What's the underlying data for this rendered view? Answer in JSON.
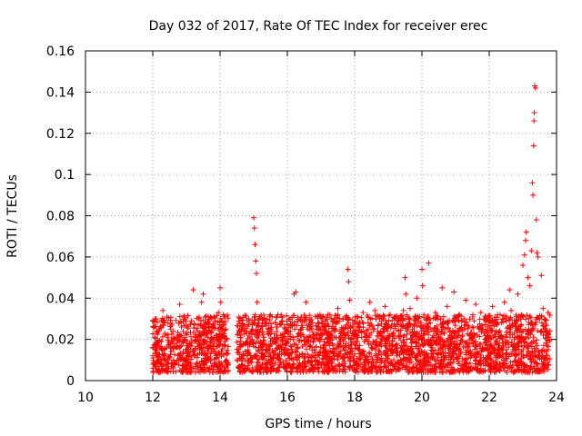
{
  "chart_data": {
    "type": "scatter",
    "title": "Day 032 of 2017, Rate Of TEC Index for receiver erec",
    "xlabel": "GPS time / hours",
    "ylabel": "ROTI / TECUs",
    "xlim": [
      10,
      24
    ],
    "ylim": [
      0,
      0.16
    ],
    "grid": true,
    "marker": "+",
    "color": "#ff0000",
    "x_ticks": [
      {
        "value": 10,
        "label": "10"
      },
      {
        "value": 12,
        "label": "12"
      },
      {
        "value": 14,
        "label": "14"
      },
      {
        "value": 16,
        "label": "16"
      },
      {
        "value": 18,
        "label": "18"
      },
      {
        "value": 20,
        "label": "20"
      },
      {
        "value": 22,
        "label": "22"
      },
      {
        "value": 24,
        "label": "24"
      }
    ],
    "y_ticks": [
      {
        "value": 0,
        "label": "0"
      },
      {
        "value": 0.02,
        "label": "0.02"
      },
      {
        "value": 0.04,
        "label": "0.04"
      },
      {
        "value": 0.06,
        "label": "0.06"
      },
      {
        "value": 0.08,
        "label": "0.08"
      },
      {
        "value": 0.1,
        "label": "0.1"
      },
      {
        "value": 0.12,
        "label": "0.12"
      },
      {
        "value": 0.14,
        "label": "0.14"
      },
      {
        "value": 0.16,
        "label": "0.16"
      }
    ],
    "series": [
      {
        "name": "ROTI",
        "points": [
          [
            12.0,
            0.012
          ],
          [
            12.05,
            0.021
          ],
          [
            12.1,
            0.03
          ],
          [
            12.12,
            0.018
          ],
          [
            12.2,
            0.025
          ],
          [
            12.25,
            0.01
          ],
          [
            12.3,
            0.034
          ],
          [
            12.35,
            0.015
          ],
          [
            12.4,
            0.022
          ],
          [
            12.45,
            0.028
          ],
          [
            12.5,
            0.011
          ],
          [
            12.55,
            0.019
          ],
          [
            12.6,
            0.024
          ],
          [
            12.65,
            0.008
          ],
          [
            12.7,
            0.016
          ],
          [
            12.8,
            0.037
          ],
          [
            12.85,
            0.026
          ],
          [
            12.9,
            0.013
          ],
          [
            12.95,
            0.02
          ],
          [
            13.0,
            0.023
          ],
          [
            13.05,
            0.009
          ],
          [
            13.1,
            0.018
          ],
          [
            13.15,
            0.029
          ],
          [
            13.2,
            0.044
          ],
          [
            13.25,
            0.012
          ],
          [
            13.3,
            0.021
          ],
          [
            13.35,
            0.027
          ],
          [
            13.4,
            0.015
          ],
          [
            13.45,
            0.038
          ],
          [
            13.5,
            0.042
          ],
          [
            13.55,
            0.01
          ],
          [
            13.6,
            0.024
          ],
          [
            13.65,
            0.031
          ],
          [
            13.7,
            0.019
          ],
          [
            13.75,
            0.014
          ],
          [
            13.8,
            0.026
          ],
          [
            13.85,
            0.008
          ],
          [
            13.9,
            0.022
          ],
          [
            13.95,
            0.033
          ],
          [
            14.0,
            0.045
          ],
          [
            14.02,
            0.038
          ],
          [
            14.05,
            0.013
          ],
          [
            14.1,
            0.027
          ],
          [
            14.15,
            0.019
          ],
          [
            14.2,
            0.009
          ],
          [
            14.55,
            0.015
          ],
          [
            14.6,
            0.022
          ],
          [
            14.65,
            0.026
          ],
          [
            14.7,
            0.012
          ],
          [
            14.75,
            0.018
          ],
          [
            14.8,
            0.023
          ],
          [
            14.85,
            0.03
          ],
          [
            14.9,
            0.011
          ],
          [
            14.95,
            0.02
          ],
          [
            15.0,
            0.079
          ],
          [
            15.02,
            0.074
          ],
          [
            15.04,
            0.066
          ],
          [
            15.06,
            0.058
          ],
          [
            15.08,
            0.052
          ],
          [
            15.1,
            0.038
          ],
          [
            15.15,
            0.016
          ],
          [
            15.2,
            0.025
          ],
          [
            15.25,
            0.013
          ],
          [
            15.3,
            0.021
          ],
          [
            15.35,
            0.028
          ],
          [
            15.4,
            0.01
          ],
          [
            15.45,
            0.017
          ],
          [
            15.5,
            0.023
          ],
          [
            15.55,
            0.031
          ],
          [
            15.6,
            0.014
          ],
          [
            15.65,
            0.019
          ],
          [
            15.7,
            0.026
          ],
          [
            15.75,
            0.011
          ],
          [
            15.8,
            0.022
          ],
          [
            15.85,
            0.029
          ],
          [
            15.9,
            0.015
          ],
          [
            15.95,
            0.018
          ],
          [
            16.0,
            0.024
          ],
          [
            16.05,
            0.012
          ],
          [
            16.1,
            0.02
          ],
          [
            16.15,
            0.027
          ],
          [
            16.2,
            0.042
          ],
          [
            16.25,
            0.043
          ],
          [
            16.3,
            0.016
          ],
          [
            16.35,
            0.023
          ],
          [
            16.4,
            0.03
          ],
          [
            16.45,
            0.013
          ],
          [
            16.5,
            0.019
          ],
          [
            16.55,
            0.038
          ],
          [
            16.6,
            0.025
          ],
          [
            16.65,
            0.011
          ],
          [
            16.7,
            0.021
          ],
          [
            16.75,
            0.028
          ],
          [
            16.8,
            0.015
          ],
          [
            16.85,
            0.022
          ],
          [
            16.9,
            0.031
          ],
          [
            16.95,
            0.014
          ],
          [
            17.0,
            0.02
          ],
          [
            17.05,
            0.026
          ],
          [
            17.1,
            0.012
          ],
          [
            17.15,
            0.024
          ],
          [
            17.2,
            0.032
          ],
          [
            17.25,
            0.017
          ],
          [
            17.3,
            0.023
          ],
          [
            17.35,
            0.029
          ],
          [
            17.4,
            0.013
          ],
          [
            17.45,
            0.021
          ],
          [
            17.5,
            0.035
          ],
          [
            17.55,
            0.018
          ],
          [
            17.6,
            0.024
          ],
          [
            17.65,
            0.03
          ],
          [
            17.7,
            0.015
          ],
          [
            17.75,
            0.027
          ],
          [
            17.8,
            0.054
          ],
          [
            17.82,
            0.048
          ],
          [
            17.85,
            0.039
          ],
          [
            17.9,
            0.02
          ],
          [
            17.95,
            0.026
          ],
          [
            18.0,
            0.013
          ],
          [
            18.05,
            0.022
          ],
          [
            18.1,
            0.031
          ],
          [
            18.15,
            0.017
          ],
          [
            18.2,
            0.024
          ],
          [
            18.25,
            0.033
          ],
          [
            18.3,
            0.012
          ],
          [
            18.35,
            0.021
          ],
          [
            18.4,
            0.028
          ],
          [
            18.45,
            0.038
          ],
          [
            18.5,
            0.016
          ],
          [
            18.55,
            0.025
          ],
          [
            18.6,
            0.034
          ],
          [
            18.65,
            0.019
          ],
          [
            18.7,
            0.027
          ],
          [
            18.75,
            0.014
          ],
          [
            18.8,
            0.022
          ],
          [
            18.85,
            0.03
          ],
          [
            18.9,
            0.036
          ],
          [
            18.95,
            0.018
          ],
          [
            19.0,
            0.026
          ],
          [
            19.05,
            0.032
          ],
          [
            19.1,
            0.015
          ],
          [
            19.15,
            0.023
          ],
          [
            19.2,
            0.031
          ],
          [
            19.25,
            0.012
          ],
          [
            19.3,
            0.024
          ],
          [
            19.35,
            0.029
          ],
          [
            19.4,
            0.017
          ],
          [
            19.45,
            0.034
          ],
          [
            19.5,
            0.05
          ],
          [
            19.52,
            0.042
          ],
          [
            19.55,
            0.02
          ],
          [
            19.6,
            0.027
          ],
          [
            19.65,
            0.035
          ],
          [
            19.7,
            0.014
          ],
          [
            19.75,
            0.022
          ],
          [
            19.8,
            0.031
          ],
          [
            19.85,
            0.04
          ],
          [
            19.9,
            0.018
          ],
          [
            19.95,
            0.026
          ],
          [
            20.0,
            0.054
          ],
          [
            20.02,
            0.046
          ],
          [
            20.05,
            0.024
          ],
          [
            20.1,
            0.011
          ],
          [
            20.15,
            0.019
          ],
          [
            20.2,
            0.057
          ],
          [
            20.25,
            0.028
          ],
          [
            20.3,
            0.016
          ],
          [
            20.35,
            0.024
          ],
          [
            20.4,
            0.033
          ],
          [
            20.45,
            0.013
          ],
          [
            20.5,
            0.021
          ],
          [
            20.55,
            0.03
          ],
          [
            20.6,
            0.045
          ],
          [
            20.65,
            0.017
          ],
          [
            20.7,
            0.025
          ],
          [
            20.75,
            0.036
          ],
          [
            20.8,
            0.012
          ],
          [
            20.85,
            0.02
          ],
          [
            20.9,
            0.029
          ],
          [
            20.95,
            0.043
          ],
          [
            21.0,
            0.016
          ],
          [
            21.05,
            0.024
          ],
          [
            21.1,
            0.032
          ],
          [
            21.15,
            0.014
          ],
          [
            21.2,
            0.022
          ],
          [
            21.25,
            0.03
          ],
          [
            21.3,
            0.039
          ],
          [
            21.35,
            0.018
          ],
          [
            21.4,
            0.026
          ],
          [
            21.45,
            0.013
          ],
          [
            21.5,
            0.021
          ],
          [
            21.55,
            0.029
          ],
          [
            21.6,
            0.037
          ],
          [
            21.65,
            0.017
          ],
          [
            21.7,
            0.025
          ],
          [
            21.75,
            0.033
          ],
          [
            21.8,
            0.015
          ],
          [
            21.85,
            0.023
          ],
          [
            21.9,
            0.031
          ],
          [
            21.95,
            0.012
          ],
          [
            22.0,
            0.02
          ],
          [
            22.05,
            0.028
          ],
          [
            22.1,
            0.036
          ],
          [
            22.15,
            0.016
          ],
          [
            22.2,
            0.024
          ],
          [
            22.25,
            0.032
          ],
          [
            22.3,
            0.014
          ],
          [
            22.35,
            0.022
          ],
          [
            22.4,
            0.03
          ],
          [
            22.45,
            0.038
          ],
          [
            22.5,
            0.018
          ],
          [
            22.55,
            0.026
          ],
          [
            22.6,
            0.044
          ],
          [
            22.65,
            0.034
          ],
          [
            22.7,
            0.015
          ],
          [
            22.75,
            0.023
          ],
          [
            22.8,
            0.031
          ],
          [
            22.85,
            0.042
          ],
          [
            22.9,
            0.019
          ],
          [
            22.95,
            0.027
          ],
          [
            23.0,
            0.056
          ],
          [
            23.05,
            0.061
          ],
          [
            23.08,
            0.068
          ],
          [
            23.1,
            0.072
          ],
          [
            23.15,
            0.05
          ],
          [
            23.2,
            0.046
          ],
          [
            23.25,
            0.063
          ],
          [
            23.28,
            0.096
          ],
          [
            23.3,
            0.09
          ],
          [
            23.32,
            0.114
          ],
          [
            23.33,
            0.126
          ],
          [
            23.34,
            0.13
          ],
          [
            23.35,
            0.143
          ],
          [
            23.37,
            0.142
          ],
          [
            23.4,
            0.078
          ],
          [
            23.42,
            0.062
          ],
          [
            23.45,
            0.06
          ],
          [
            23.5,
            0.03
          ],
          [
            23.55,
            0.051
          ],
          [
            23.6,
            0.035
          ],
          [
            23.62,
            0.017
          ],
          [
            23.65,
            0.025
          ],
          [
            23.7,
            0.012
          ],
          [
            23.72,
            0.021
          ],
          [
            23.75,
            0.033
          ]
        ]
      }
    ]
  }
}
